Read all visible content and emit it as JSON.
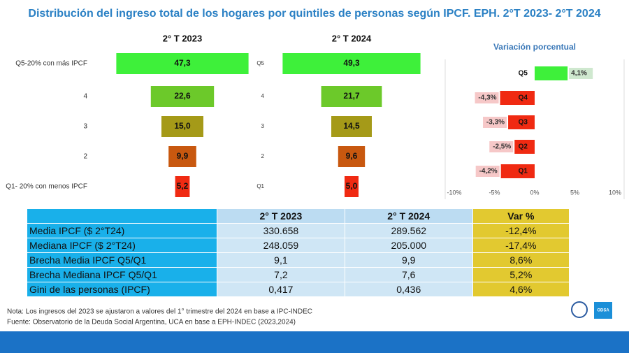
{
  "title": "Distribución del ingreso total de los hogares por quintiles de personas según IPCF. EPH. 2°T 2023- 2°T 2024",
  "chart_data": [
    {
      "type": "funnel",
      "title": "2° T 2023",
      "categories": [
        "Q5-20% con más IPCF",
        "4",
        "3",
        "2",
        "Q1- 20% con menos IPCF"
      ],
      "values": [
        47.3,
        22.6,
        15.0,
        9.9,
        5.2
      ],
      "value_labels": [
        "47,3",
        "22,6",
        "15,0",
        "9,9",
        "5,2"
      ],
      "colors": [
        "#3ef03a",
        "#6cc92a",
        "#a59a18",
        "#c8580f",
        "#f02a12"
      ]
    },
    {
      "type": "funnel",
      "title": "2° T 2024",
      "categories": [
        "Q5",
        "4",
        "3",
        "2",
        "Q1"
      ],
      "values": [
        49.3,
        21.7,
        14.5,
        9.6,
        5.0
      ],
      "value_labels": [
        "49,3",
        "21,7",
        "14,5",
        "9,6",
        "5,0"
      ],
      "colors": [
        "#3ef03a",
        "#6cc92a",
        "#a59a18",
        "#c8580f",
        "#f02a12"
      ]
    },
    {
      "type": "bar",
      "orientation": "horizontal",
      "title": "Variación porcentual",
      "categories": [
        "Q5",
        "Q4",
        "Q3",
        "Q2",
        "Q1"
      ],
      "values": [
        4.1,
        -4.3,
        -3.3,
        -2.5,
        -4.2
      ],
      "value_labels": [
        "4,1%",
        "-4,3%",
        "-3,3%",
        "-2,5%",
        "-4,2%"
      ],
      "colors": [
        "#3ef03a",
        "#f02a12",
        "#f02a12",
        "#f02a12",
        "#f02a12"
      ],
      "xlim": [
        -10,
        10
      ],
      "xticks": [
        {
          "value": -10,
          "label": "-10%"
        },
        {
          "value": -5,
          "label": "-5%"
        },
        {
          "value": 0,
          "label": "0%"
        },
        {
          "value": 5,
          "label": "5%"
        },
        {
          "value": 10,
          "label": "10%"
        }
      ]
    }
  ],
  "table": {
    "header": [
      "2° T 2023",
      "2° T 2024",
      "Var %"
    ],
    "rows": [
      [
        "Media IPCF ($ 2°T24)",
        "330.658",
        "289.562",
        "-12,4%"
      ],
      [
        "Mediana IPCF ($ 2°T24)",
        "248.059",
        "205.000",
        "-17,4%"
      ],
      [
        "Brecha Media IPCF Q5/Q1",
        "9,1",
        "9,9",
        "8,6%"
      ],
      [
        "Brecha Mediana IPCF Q5/Q1",
        "7,2",
        "7,6",
        "5,2%"
      ],
      [
        "Gini de las personas (IPCF)",
        "0,417",
        "0,436",
        "4,6%"
      ]
    ]
  },
  "notes": [
    "Nota: Los ingresos del 2023 se ajustaron a valores del 1° trimestre del 2024 en base a IPC-INDEC",
    "Fuente: Observatorio de la Deuda Social Argentina, UCA en base a EPH-INDEC (2023,2024)"
  ],
  "logo_text": "ODSA"
}
